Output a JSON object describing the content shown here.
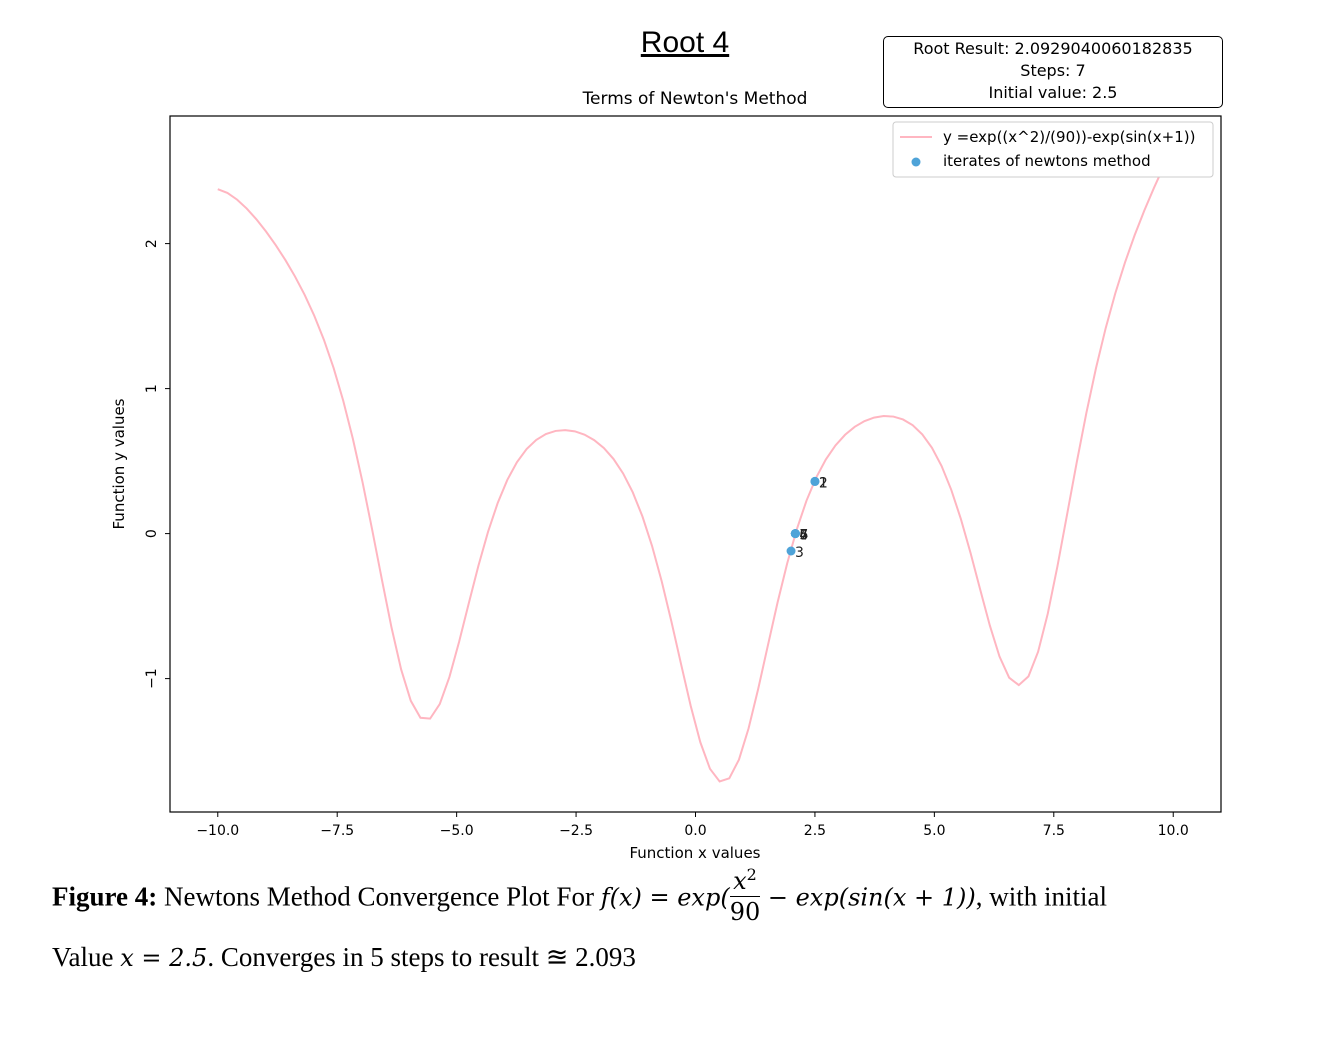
{
  "header": {
    "title": "Root 4",
    "result_lines": [
      "Root Result: 2.0929040060182835",
      "Steps: 7",
      "Initial value: 2.5"
    ]
  },
  "chart_data": {
    "type": "line",
    "title": "Terms of Newton's Method",
    "xlabel": "Function x values",
    "ylabel": "Function y values",
    "xlim": [
      -11.0,
      11.0
    ],
    "ylim": [
      -1.92,
      2.88
    ],
    "x_ticks": [
      -10.0,
      -7.5,
      -5.0,
      -2.5,
      0.0,
      2.5,
      5.0,
      7.5,
      10.0
    ],
    "x_tick_labels": [
      "−10.0",
      "−7.5",
      "−5.0",
      "−2.5",
      "0.0",
      "2.5",
      "5.0",
      "7.5",
      "10.0"
    ],
    "y_ticks": [
      -1,
      0,
      1,
      2
    ],
    "y_tick_labels": [
      "−1",
      "0",
      "1",
      "2"
    ],
    "legend_position": "top-right",
    "grid": false,
    "series": [
      {
        "name": "y =exp((x^2)/(90))-exp(sin(x+1))",
        "kind": "line",
        "color": "#ffb6c1",
        "function": "exp((x^2)/(90))-exp(sin(x+1))",
        "x_range": [
          -10,
          10
        ],
        "samples": 100
      },
      {
        "name": "iterates of newtons method",
        "kind": "scatter",
        "color": "#4ea3d8",
        "points": [
          {
            "label": "1",
            "x": 2.5,
            "y": 0.36
          },
          {
            "label": "2",
            "x": 2.5,
            "y": 0.36
          },
          {
            "label": "3",
            "x": 2.0,
            "y": -0.12
          },
          {
            "label": "4",
            "x": 2.09,
            "y": 0.0
          },
          {
            "label": "5",
            "x": 2.09,
            "y": 0.0
          },
          {
            "label": "6",
            "x": 2.09,
            "y": 0.0
          },
          {
            "label": "7",
            "x": 2.09,
            "y": 0.0
          }
        ]
      }
    ]
  },
  "caption": {
    "lead": "Figure 4:",
    "text_before": " Newtons Method Convergence Plot For ",
    "formula_left": "f(x) = exp(",
    "frac_num": "x",
    "frac_sup": "2",
    "frac_den": "90",
    "formula_right": " − exp(sin(x + 1))",
    "text_after": ", with initial",
    "line2_before": "Value ",
    "line2_formula": "x = 2.5",
    "line2_after": ". Converges in 5 steps to result ≊ 2.093"
  }
}
